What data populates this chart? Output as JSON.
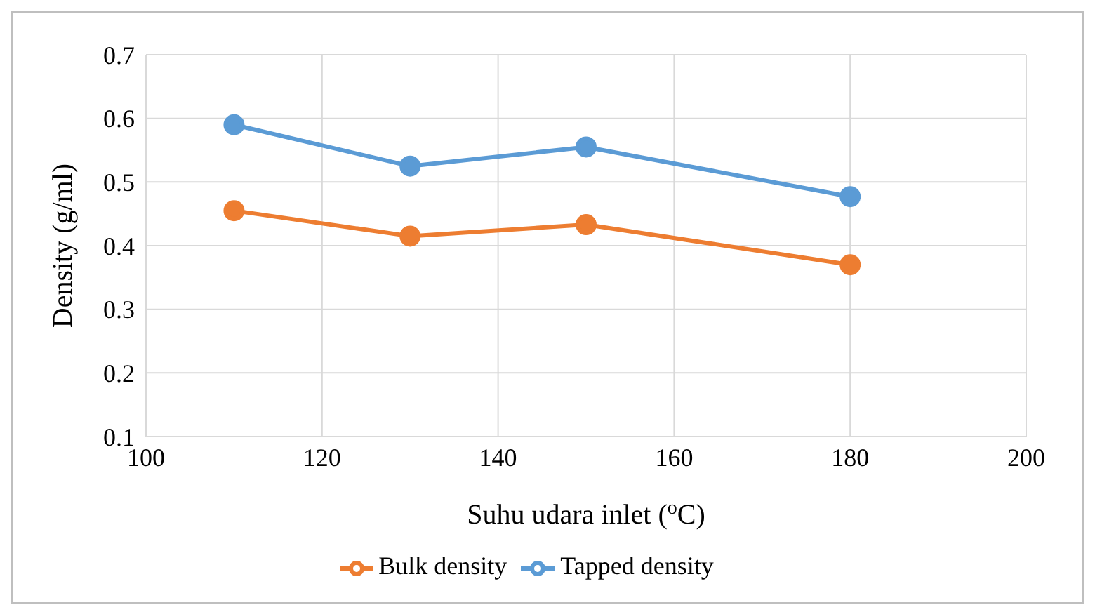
{
  "chart_data": {
    "type": "line",
    "xlabel": "Suhu udara inlet ($^{o}$C)",
    "ylabel": "Density (g/ml)",
    "x": [
      110,
      130,
      150,
      180
    ],
    "series": [
      {
        "name": "Bulk density",
        "color": "#ed7d31",
        "values": [
          0.455,
          0.415,
          0.433,
          0.37
        ]
      },
      {
        "name": "Tapped density",
        "color": "#5b9bd5",
        "values": [
          0.59,
          0.525,
          0.555,
          0.477
        ]
      }
    ],
    "xlim": [
      100,
      200
    ],
    "xticks": [
      100,
      120,
      140,
      160,
      180,
      200
    ],
    "ylim": [
      0.1,
      0.7
    ],
    "yticks": [
      0.1,
      0.2,
      0.3,
      0.4,
      0.5,
      0.6,
      0.7
    ],
    "grid": true,
    "legend": "bottom",
    "marker": "circle",
    "line_style": "solid"
  }
}
